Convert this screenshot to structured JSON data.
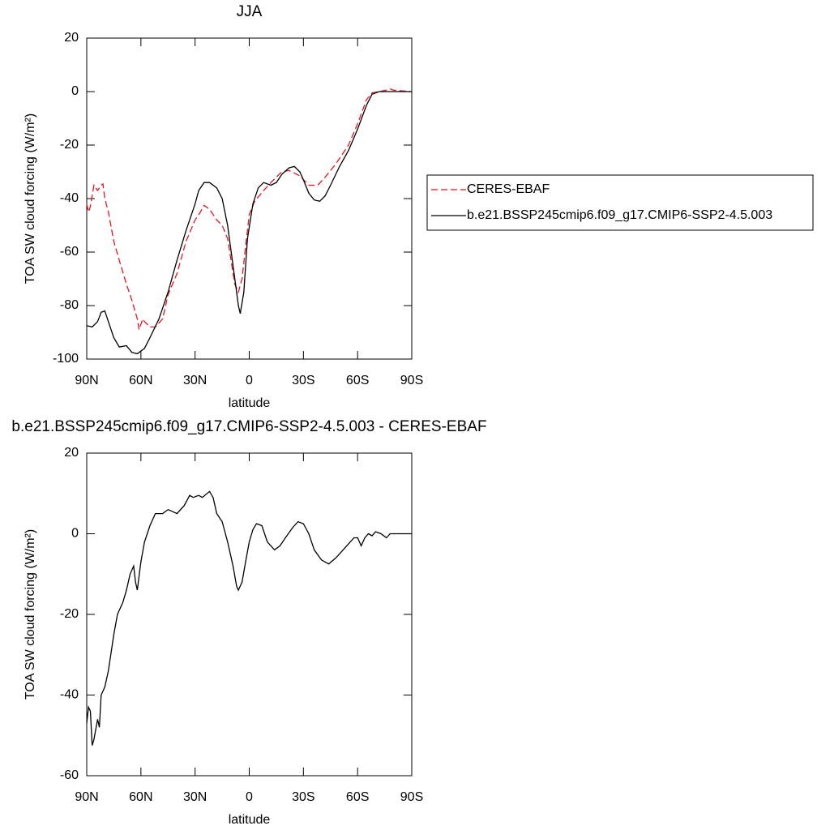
{
  "chart_data": [
    {
      "type": "line",
      "title": "JJA",
      "xlabel": "latitude",
      "ylabel": "TOA SW cloud forcing (W/m²)",
      "xlim": [
        90,
        -90
      ],
      "ylim": [
        -100,
        20
      ],
      "xticks": [
        {
          "value": 90,
          "label": "90N"
        },
        {
          "value": 60,
          "label": "60N"
        },
        {
          "value": 30,
          "label": "30N"
        },
        0,
        {
          "value": -30,
          "label": "30S"
        },
        {
          "value": -60,
          "label": "60S"
        },
        {
          "value": -90,
          "label": "90S"
        }
      ],
      "yticks": [
        -100,
        -80,
        -60,
        -40,
        -20,
        0,
        20
      ],
      "legend": "right",
      "series": [
        {
          "name": "CERES-EBAF",
          "color": "#e8141c",
          "dash": true,
          "x": [
            90,
            89,
            88,
            86,
            84,
            82,
            81,
            80,
            78,
            75,
            72,
            68,
            65,
            62,
            61,
            59,
            58,
            55,
            52,
            48,
            45,
            40,
            35,
            30,
            27,
            25,
            22,
            18,
            15,
            12,
            8,
            6,
            4,
            2,
            0,
            -3,
            -8,
            -12,
            -18,
            -22,
            -28,
            -33,
            -38,
            -42,
            -48,
            -55,
            -60,
            -65,
            -68,
            -72,
            -76,
            -78,
            -80,
            -90
          ],
          "values": [
            -42,
            -45,
            -43,
            -35,
            -37,
            -35,
            -34.5,
            -40,
            -45,
            -56,
            -63,
            -72,
            -78,
            -85,
            -89,
            -85,
            -86,
            -88,
            -88,
            -85,
            -76,
            -68,
            -56,
            -48,
            -45,
            -42.5,
            -44,
            -48,
            -50,
            -55,
            -72,
            -75,
            -70,
            -58,
            -46,
            -41,
            -37,
            -34,
            -30,
            -29.5,
            -31.5,
            -35,
            -35,
            -32,
            -27,
            -20,
            -12,
            -3,
            -0.5,
            0,
            0.5,
            1,
            0.5,
            0
          ]
        },
        {
          "name": "b.e21.BSSP245cmip6.f09_g17.CMIP6-SSP2-4.5.003",
          "color": "#000000",
          "dash": false,
          "x": [
            90,
            87,
            84,
            82,
            80,
            78,
            75,
            72,
            68,
            65,
            62,
            58,
            55,
            50,
            45,
            40,
            35,
            30,
            28,
            25,
            22,
            18,
            15,
            12,
            8,
            6,
            5,
            3,
            1,
            -2,
            -5,
            -8,
            -12,
            -15,
            -18,
            -22,
            -25,
            -28,
            -30,
            -33,
            -36,
            -39,
            -42,
            -45,
            -50,
            -55,
            -60,
            -65,
            -68,
            -72,
            -80,
            -90
          ],
          "values": [
            -87.5,
            -88,
            -86,
            -82.5,
            -82,
            -86,
            -92,
            -95.5,
            -95,
            -97.5,
            -98,
            -96,
            -92,
            -85,
            -75,
            -63,
            -52,
            -42,
            -37,
            -34,
            -34,
            -36,
            -40,
            -50,
            -70,
            -80,
            -83,
            -75,
            -55,
            -42,
            -36,
            -34,
            -35,
            -34,
            -31,
            -28.5,
            -28,
            -30,
            -33,
            -38,
            -40.5,
            -41,
            -39,
            -35,
            -28,
            -22,
            -14,
            -5,
            -1,
            0,
            0,
            0
          ]
        }
      ]
    },
    {
      "type": "line",
      "title": "b.e21.BSSP245cmip6.f09_g17.CMIP6-SSP2-4.5.003 - CERES-EBAF",
      "xlabel": "latitude",
      "ylabel": "TOA SW cloud forcing (W/m²)",
      "xlim": [
        90,
        -90
      ],
      "ylim": [
        -60,
        20
      ],
      "xticks": [
        {
          "value": 90,
          "label": "90N"
        },
        {
          "value": 60,
          "label": "60N"
        },
        {
          "value": 30,
          "label": "30N"
        },
        0,
        {
          "value": -30,
          "label": "30S"
        },
        {
          "value": -60,
          "label": "60S"
        },
        {
          "value": -90,
          "label": "90S"
        }
      ],
      "yticks": [
        -60,
        -40,
        -20,
        0,
        20
      ],
      "series": [
        {
          "color": "#000000",
          "dash": false,
          "x": [
            90,
            89,
            88,
            87,
            86,
            84,
            83,
            82,
            80,
            78,
            75,
            73,
            70,
            68,
            66,
            64,
            63,
            62,
            60,
            58,
            55,
            52,
            48,
            45,
            40,
            36,
            33,
            31,
            28,
            26,
            22,
            20,
            18,
            15,
            12,
            9,
            7,
            6,
            4,
            2,
            0,
            -2,
            -4,
            -7,
            -10,
            -14,
            -17,
            -20,
            -24,
            -27,
            -30,
            -33,
            -36,
            -40,
            -44,
            -48,
            -52,
            -55,
            -58,
            -60,
            -62,
            -64,
            -66,
            -68,
            -70,
            -73,
            -76,
            -78,
            -80,
            -90
          ],
          "values": [
            -47,
            -43,
            -44,
            -52.5,
            -51,
            -46,
            -48,
            -40,
            -38,
            -34,
            -25,
            -20,
            -17,
            -14,
            -10,
            -8,
            -12,
            -14,
            -7,
            -2,
            2,
            5,
            5,
            6,
            5,
            7,
            9.5,
            9,
            9.5,
            9,
            10.5,
            9,
            5,
            3,
            -2,
            -8,
            -13,
            -14,
            -12,
            -7,
            -2,
            1,
            2.5,
            2,
            -2,
            -4,
            -3,
            -1,
            1.5,
            3,
            2.5,
            0,
            -4,
            -6.5,
            -7.5,
            -6,
            -4,
            -2.5,
            -1,
            -1,
            -3,
            -1,
            0,
            -0.5,
            0.5,
            0,
            -1,
            0,
            0,
            0
          ]
        }
      ]
    }
  ]
}
